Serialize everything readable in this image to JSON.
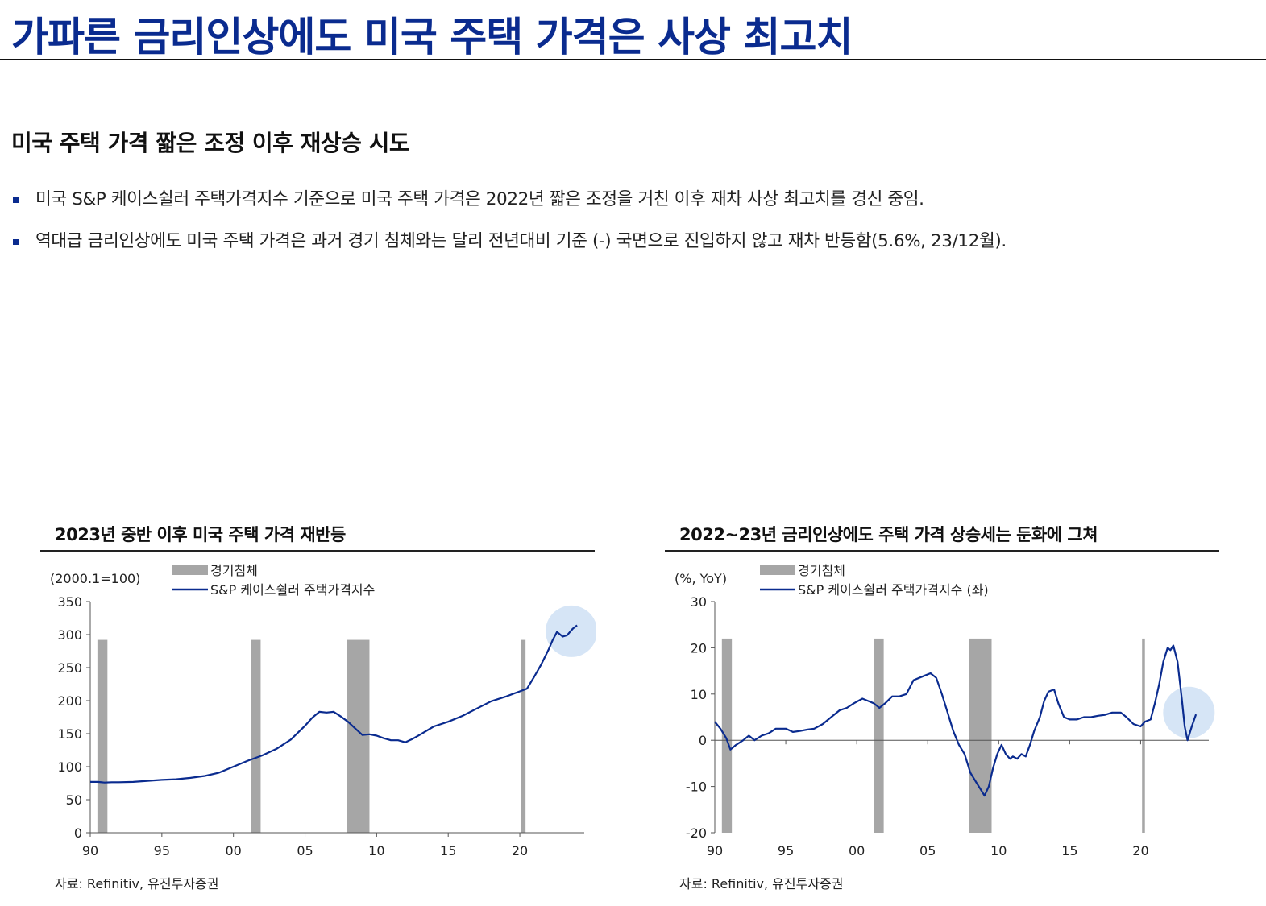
{
  "page": {
    "title": "가파른 금리인상에도 미국 주택 가격은 사상 최고치",
    "subtitle": "미국 주택 가격 짧은 조정 이후 재상승 시도",
    "bullets": [
      "미국 S&P 케이스쉴러 주택가격지수 기준으로 미국 주택 가격은 2022년 짧은 조정을 거친 이후 재차 사상 최고치를 경신 중임.",
      "역대급 금리인상에도 미국 주택 가격은 과거 경기 침체와는 달리 전년대비 기준 (-) 국면으로 진입하지 않고 재차 반등함(5.6%, 23/12월)."
    ]
  },
  "colors": {
    "title": "#0a2b8f",
    "series": "#0a2b8f",
    "recession": "#a6a6a6",
    "highlight": "#cfe1f5"
  },
  "chart_data": [
    {
      "type": "line",
      "title": "2023년 중반 이후 미국 주택 가격 재반등",
      "unit_label": "(2000.1=100)",
      "source": "자료: Refinitiv, 유진투자증권",
      "legend": [
        "경기침체",
        "S&P 케이스쉴러 주택가격지수"
      ],
      "x_ticks": [
        "90",
        "95",
        "00",
        "05",
        "10",
        "15",
        "20"
      ],
      "x_tick_values": [
        1990,
        1995,
        2000,
        2005,
        2010,
        2015,
        2020
      ],
      "xlim": [
        1990,
        2024.5
      ],
      "ylim": [
        0,
        350
      ],
      "y_ticks": [
        "0",
        "50",
        "100",
        "150",
        "200",
        "250",
        "300",
        "350"
      ],
      "y_tick_values": [
        0,
        50,
        100,
        150,
        200,
        250,
        300,
        350
      ],
      "recessions": [
        [
          1990.5,
          1991.2
        ],
        [
          2001.2,
          2001.9
        ],
        [
          2007.9,
          2009.5
        ],
        [
          2020.1,
          2020.4
        ]
      ],
      "recession_top": 292,
      "highlight": {
        "x": 2023.6,
        "y": 305
      },
      "series": [
        {
          "name": "S&P 케이스쉴러 주택가격지수",
          "x": [
            1990.0,
            1990.5,
            1991.0,
            1991.5,
            1992.0,
            1993.0,
            1994.0,
            1995.0,
            1996.0,
            1997.0,
            1998.0,
            1999.0,
            2000.0,
            2001.0,
            2002.0,
            2003.0,
            2004.0,
            2005.0,
            2005.5,
            2006.0,
            2006.5,
            2007.0,
            2007.5,
            2008.0,
            2008.5,
            2009.0,
            2009.5,
            2010.0,
            2010.5,
            2011.0,
            2011.5,
            2012.0,
            2012.5,
            2013.0,
            2014.0,
            2015.0,
            2016.0,
            2017.0,
            2018.0,
            2019.0,
            2020.0,
            2020.5,
            2021.0,
            2021.5,
            2022.0,
            2022.3,
            2022.6,
            2023.0,
            2023.3,
            2023.7,
            2024.0
          ],
          "values": [
            77,
            77,
            76,
            76.5,
            76.5,
            77,
            78.5,
            80,
            81,
            83,
            86,
            91,
            100,
            109,
            117,
            127,
            141,
            162,
            174,
            183,
            182,
            183,
            176,
            168,
            158,
            148,
            149,
            147,
            143,
            140,
            140,
            137,
            142,
            148,
            161,
            168,
            177,
            188,
            199,
            206,
            214,
            218,
            236,
            255,
            277,
            292,
            304,
            297,
            299,
            309,
            314
          ]
        }
      ]
    },
    {
      "type": "line",
      "title": "2022~23년 금리인상에도 주택 가격 상승세는 둔화에 그쳐",
      "unit_label": "(%, YoY)",
      "source": "자료: Refinitiv, 유진투자증권",
      "legend": [
        "경기침체",
        "S&P 케이스쉴러 주택가격지수 (좌)"
      ],
      "x_ticks": [
        "90",
        "95",
        "00",
        "05",
        "10",
        "15",
        "20"
      ],
      "x_tick_values": [
        1990,
        1995,
        2000,
        2005,
        2010,
        2015,
        2020
      ],
      "xlim": [
        1990,
        2024.8
      ],
      "ylim": [
        -20,
        30
      ],
      "y_ticks": [
        "-20",
        "-10",
        "0",
        "10",
        "20",
        "30"
      ],
      "y_tick_values": [
        -20,
        -10,
        0,
        10,
        20,
        30
      ],
      "recessions": [
        [
          1990.5,
          1991.2
        ],
        [
          2001.2,
          2001.9
        ],
        [
          2007.9,
          2009.5
        ],
        [
          2020.1,
          2020.3
        ]
      ],
      "recession_top": 22,
      "highlight": {
        "x": 2023.4,
        "y": 6
      },
      "series": [
        {
          "name": "S&P 케이스쉴러 주택가격지수 (좌)",
          "x": [
            1990.0,
            1990.4,
            1990.8,
            1991.1,
            1991.5,
            1992.0,
            1992.4,
            1992.8,
            1993.3,
            1993.8,
            1994.3,
            1995.0,
            1995.5,
            1996.0,
            1996.5,
            1997.0,
            1997.6,
            1998.2,
            1998.8,
            1999.3,
            1999.8,
            2000.4,
            2000.8,
            2001.2,
            2001.6,
            2002.0,
            2002.5,
            2003.0,
            2003.5,
            2004.0,
            2004.4,
            2004.8,
            2005.2,
            2005.6,
            2006.0,
            2006.4,
            2006.8,
            2007.2,
            2007.6,
            2008.0,
            2008.4,
            2008.8,
            2009.0,
            2009.3,
            2009.6,
            2009.9,
            2010.2,
            2010.5,
            2010.8,
            2011.0,
            2011.3,
            2011.6,
            2011.9,
            2012.2,
            2012.5,
            2012.9,
            2013.2,
            2013.5,
            2013.9,
            2014.2,
            2014.6,
            2015.0,
            2015.5,
            2016.0,
            2016.5,
            2017.0,
            2017.5,
            2018.0,
            2018.6,
            2019.0,
            2019.5,
            2020.0,
            2020.3,
            2020.7,
            2021.0,
            2021.3,
            2021.6,
            2021.9,
            2022.1,
            2022.3,
            2022.6,
            2022.9,
            2023.1,
            2023.3,
            2023.6,
            2023.9
          ],
          "values": [
            4,
            2.5,
            0.5,
            -2,
            -1,
            0,
            1,
            0,
            1,
            1.5,
            2.5,
            2.5,
            1.8,
            2,
            2.3,
            2.5,
            3.5,
            5,
            6.5,
            7,
            8,
            9,
            8.5,
            8,
            7,
            8,
            9.5,
            9.5,
            10,
            13,
            13.5,
            14,
            14.5,
            13.5,
            10,
            6,
            2,
            -1,
            -3,
            -7,
            -9,
            -11,
            -12,
            -10,
            -6,
            -3,
            -1,
            -3,
            -4,
            -3.5,
            -4,
            -3,
            -3.5,
            -1,
            2,
            5,
            8.5,
            10.5,
            11,
            8,
            5,
            4.5,
            4.5,
            5,
            5,
            5.3,
            5.5,
            6,
            6,
            5,
            3.5,
            3,
            4,
            4.5,
            8,
            12,
            17,
            20,
            19.5,
            20.5,
            17,
            9,
            3,
            0,
            3,
            5.6
          ]
        }
      ]
    }
  ]
}
